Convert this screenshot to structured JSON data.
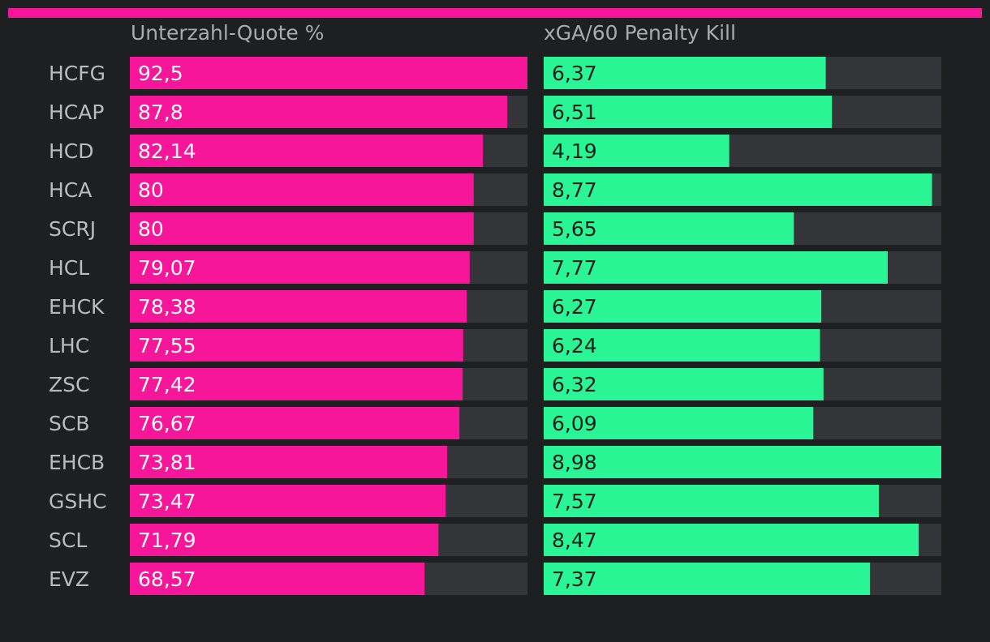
{
  "colors": {
    "background": "#1e1f21",
    "accent": "#f5169a",
    "secondary": "#2af594",
    "track": "#343538",
    "label": "#b9bbbe",
    "value_on_pink": "#ffffff",
    "value_on_green": "#1c1d1f"
  },
  "chart_data": {
    "type": "bar",
    "orientation": "horizontal",
    "categories": [
      "HCFG",
      "HCAP",
      "HCD",
      "HCA",
      "SCRJ",
      "HCL",
      "EHCK",
      "LHC",
      "ZSC",
      "SCB",
      "EHCB",
      "GSHC",
      "SCL",
      "EVZ"
    ],
    "series": [
      {
        "name": "Unterzahl-Quote %",
        "values": [
          92.5,
          87.8,
          82.14,
          80,
          80,
          79.07,
          78.38,
          77.55,
          77.42,
          76.67,
          73.81,
          73.47,
          71.79,
          68.57
        ],
        "labels": [
          "92,5",
          "87,8",
          "82,14",
          "80",
          "80",
          "79,07",
          "78,38",
          "77,55",
          "77,42",
          "76,67",
          "73,81",
          "73,47",
          "71,79",
          "68,57"
        ],
        "xlim": [
          0,
          92.5
        ]
      },
      {
        "name": "xGA/60 Penalty Kill",
        "values": [
          6.37,
          6.51,
          4.19,
          8.77,
          5.65,
          7.77,
          6.27,
          6.24,
          6.32,
          6.09,
          8.98,
          7.57,
          8.47,
          7.37
        ],
        "labels": [
          "6,37",
          "6,51",
          "4,19",
          "8,77",
          "5,65",
          "7,77",
          "6,27",
          "6,24",
          "6,32",
          "6,09",
          "8,98",
          "7,57",
          "8,47",
          "7,37"
        ],
        "xlim": [
          0,
          8.98
        ]
      }
    ]
  }
}
